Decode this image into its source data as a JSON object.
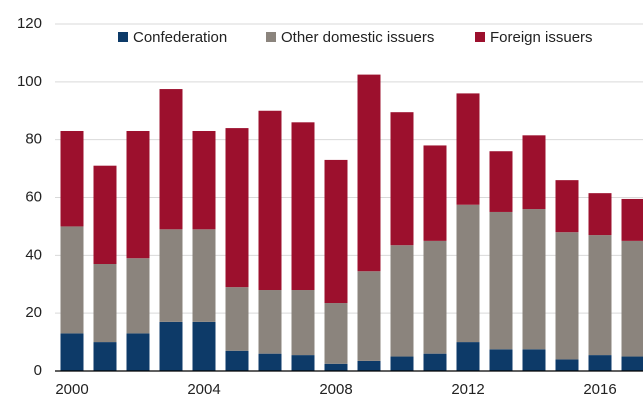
{
  "chart_data": {
    "type": "stacked_bar",
    "categories": [
      "2000",
      null,
      null,
      null,
      "2004",
      null,
      null,
      null,
      "2008",
      null,
      null,
      null,
      "2012",
      null,
      null,
      null,
      "2016",
      null
    ],
    "series": [
      {
        "name": "Confederation",
        "color": "#0d3a68",
        "values": [
          13,
          10,
          13,
          17,
          17,
          7,
          6,
          5.5,
          2.5,
          3.5,
          5,
          6,
          10,
          7.5,
          7.5,
          4,
          5.5,
          5
        ]
      },
      {
        "name": "Other domestic issuers",
        "color": "#8b847d",
        "values": [
          37,
          27,
          26,
          32,
          32,
          22,
          22,
          22.5,
          21,
          31,
          38.5,
          39,
          47.5,
          47.5,
          48.5,
          44,
          41.5,
          40
        ]
      },
      {
        "name": "Foreign issuers",
        "color": "#9c102d",
        "values": [
          33,
          34,
          44,
          48.5,
          34,
          55,
          62,
          58,
          49.5,
          68,
          46,
          33,
          38.5,
          21,
          25.5,
          18,
          14.5,
          14.5
        ]
      }
    ],
    "ylim": [
      0,
      120
    ],
    "yticks": [
      0,
      20,
      40,
      60,
      80,
      100,
      120
    ],
    "grid": true
  }
}
